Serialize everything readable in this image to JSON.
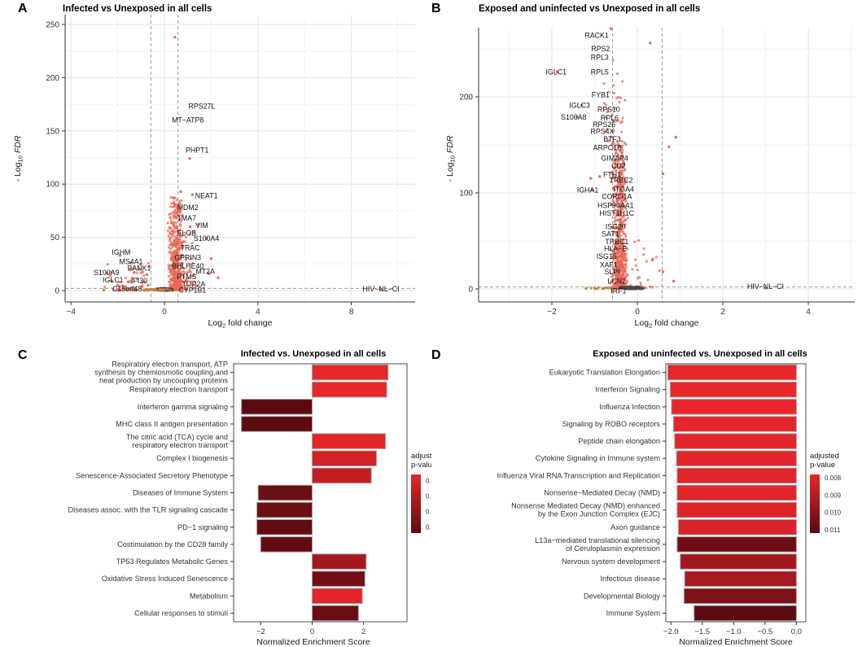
{
  "figure": {
    "panels": [
      {
        "letter": "A"
      },
      {
        "letter": "B"
      },
      {
        "letter": "C"
      },
      {
        "letter": "D"
      }
    ]
  },
  "colors": {
    "point_red": "#e8695a",
    "point_gray": "#474747",
    "point_orange": "#c8803c",
    "grid_major": "#e4e4e4",
    "grid_minor": "#f2f2f2",
    "axis": "#333333",
    "dash": "#9a9a9a",
    "bar_bright": "#e8262a",
    "bar_dark": "#5b0b10",
    "bar_stroke": "#a3a3a3",
    "panel_border": "#4d4d4d",
    "title_color": "#000000",
    "text_color": "#333333"
  },
  "chart_data": [
    {
      "panel": "A",
      "type": "scatter",
      "title": "Infected vs Unexposed in all cells",
      "xlabel": {
        "pre": "Log",
        "sub": "2",
        "post": " fold change",
        "italic": false
      },
      "ylabel": {
        "pre": "- Log",
        "sub": "10",
        "post": " FDR",
        "italic": true
      },
      "xticks": [
        {
          "v": -4,
          "label": "−4"
        },
        {
          "v": 0,
          "label": "0"
        },
        {
          "v": 4,
          "label": "4"
        },
        {
          "v": 8,
          "label": "8"
        }
      ],
      "yticks": [
        {
          "v": 0,
          "label": "0"
        },
        {
          "v": 50,
          "label": "50"
        },
        {
          "v": 100,
          "label": "100"
        },
        {
          "v": 150,
          "label": "150"
        },
        {
          "v": 200,
          "label": "200"
        },
        {
          "v": 250,
          "label": "250"
        }
      ],
      "xminor": [
        -2,
        2,
        6,
        10
      ],
      "yminor": [
        25,
        75,
        125,
        175,
        225
      ],
      "vlines": [
        -0.58,
        0.58
      ],
      "hline": 2,
      "gene_labels": [
        [
          "RPS27L",
          1.6,
          173
        ],
        [
          "MT−ATP8",
          1.0,
          160
        ],
        [
          "PHPT1",
          1.4,
          132
        ],
        [
          "NEAT1",
          1.8,
          89
        ],
        [
          "MDM2",
          1.0,
          78
        ],
        [
          "TMA7",
          0.95,
          68
        ],
        [
          "VIM",
          1.6,
          61
        ],
        [
          "ELOB",
          0.95,
          54
        ],
        [
          "S100A4",
          1.8,
          49
        ],
        [
          "TRAC",
          1.1,
          40
        ],
        [
          "GPRIN3",
          1.0,
          31
        ],
        [
          "BHLHE40",
          1.0,
          23
        ],
        [
          "MT2A",
          1.75,
          18
        ],
        [
          "PTMS",
          0.95,
          13
        ],
        [
          "TOP2A",
          1.25,
          6
        ],
        [
          "CYP1B1",
          1.2,
          0.5
        ],
        [
          "IGHM",
          -1.85,
          36
        ],
        [
          "MS4A1",
          -1.43,
          27
        ],
        [
          "BANK1",
          -1.08,
          21
        ],
        [
          "S100A9",
          -2.48,
          17
        ],
        [
          "IGLC1",
          -2.2,
          10
        ],
        [
          "IFI30",
          -1.08,
          9
        ],
        [
          "C15orf48",
          -1.6,
          1.5
        ],
        [
          "HIV−NL−CI",
          9.27,
          1.5
        ]
      ],
      "clouds": [
        {
          "n": 550,
          "cx": 0.48,
          "hw": 0.34,
          "ymin": 0.5,
          "ymax": 88,
          "pow": 2.3,
          "color": "red",
          "seed": 11
        },
        {
          "n": 60,
          "cx": 1.0,
          "hw": 0.55,
          "ymin": 1,
          "ymax": 58,
          "pow": 2.0,
          "color": "red",
          "seed": 12
        },
        {
          "n": 40,
          "cx": -1.5,
          "hw": 1.05,
          "ymin": 0.5,
          "ymax": 30,
          "pow": 2.2,
          "color": "red",
          "seed": 13
        },
        {
          "n": 170,
          "cx": 0.02,
          "hw": 0.38,
          "ymin": 0,
          "ymax": 2.2,
          "pow": 1.2,
          "color": "gray",
          "seed": 14
        },
        {
          "n": 26,
          "cx": -0.3,
          "hw": 1.1,
          "ymin": 0,
          "ymax": 1.5,
          "pow": 1.0,
          "color": "orange",
          "seed": 15
        }
      ],
      "points": [
        {
          "x": 0.45,
          "y": 238,
          "c": "red"
        },
        {
          "x": 1.08,
          "y": 124,
          "c": "red"
        },
        {
          "x": 0.7,
          "y": 93,
          "c": "red"
        },
        {
          "x": 1.2,
          "y": 90,
          "c": "red"
        },
        {
          "x": 0.4,
          "y": 87,
          "c": "red"
        },
        {
          "x": 1.45,
          "y": 62,
          "c": "red"
        },
        {
          "x": 1.1,
          "y": 60,
          "c": "red"
        },
        {
          "x": 1.8,
          "y": 49,
          "c": "red"
        },
        {
          "x": 2.0,
          "y": 30,
          "c": "red"
        },
        {
          "x": 2.3,
          "y": 12,
          "c": "red"
        },
        {
          "x": 1.9,
          "y": 16,
          "c": "red"
        },
        {
          "x": -1.9,
          "y": 33,
          "c": "red"
        },
        {
          "x": -1.45,
          "y": 26,
          "c": "red"
        },
        {
          "x": -1.1,
          "y": 20,
          "c": "red"
        },
        {
          "x": -2.45,
          "y": 16,
          "c": "red"
        },
        {
          "x": -2.25,
          "y": 9,
          "c": "red"
        },
        {
          "x": -1.55,
          "y": 8,
          "c": "red"
        },
        {
          "x": -1.15,
          "y": 11,
          "c": "red"
        },
        {
          "x": -0.85,
          "y": 8,
          "c": "red"
        },
        {
          "x": -1.3,
          "y": 17,
          "c": "red"
        },
        {
          "x": -0.95,
          "y": 4,
          "c": "red"
        },
        {
          "x": -1.7,
          "y": 3,
          "c": "red"
        },
        {
          "x": -2.0,
          "y": 5,
          "c": "red"
        },
        {
          "x": -0.75,
          "y": 15,
          "c": "red"
        },
        {
          "x": -0.7,
          "y": 5,
          "c": "red"
        },
        {
          "x": -1.6,
          "y": 0.8,
          "c": "orange"
        },
        {
          "x": -1.2,
          "y": 0.6,
          "c": "orange"
        },
        {
          "x": -0.8,
          "y": 0.9,
          "c": "orange"
        },
        {
          "x": 9.27,
          "y": 0.8,
          "c": "orange"
        },
        {
          "x": 0.95,
          "y": 0.7,
          "c": "orange"
        },
        {
          "x": -2.6,
          "y": 0.5,
          "c": "orange"
        }
      ]
    },
    {
      "panel": "B",
      "type": "scatter",
      "title": "Exposed and uninfected vs Unexposed in all cells",
      "xlabel": {
        "pre": "Log",
        "sub": "2",
        "post": " fold change",
        "italic": false
      },
      "ylabel": {
        "pre": "- Log",
        "sub": "10",
        "post": " FDR",
        "italic": true
      },
      "xticks": [
        {
          "v": -2,
          "label": "−2"
        },
        {
          "v": 0,
          "label": "0"
        },
        {
          "v": 2,
          "label": "2"
        },
        {
          "v": 4,
          "label": "4"
        }
      ],
      "yticks": [
        {
          "v": 0,
          "label": "0"
        },
        {
          "v": 100,
          "label": "100"
        },
        {
          "v": 200,
          "label": "200"
        }
      ],
      "xminor": [
        -3,
        -1,
        1,
        3,
        5
      ],
      "yminor": [
        50,
        150,
        250
      ],
      "vlines": [
        -0.58,
        0.58
      ],
      "hline": 2,
      "gene_labels": [
        [
          "RACK1",
          -0.95,
          264
        ],
        [
          "RPS2",
          -0.86,
          250
        ],
        [
          "RPL3",
          -0.88,
          241
        ],
        [
          "RPL5",
          -0.88,
          226
        ],
        [
          "IGLC1",
          -1.9,
          226
        ],
        [
          "FYB1",
          -0.86,
          202
        ],
        [
          "IGLC3",
          -1.35,
          191
        ],
        [
          "RPS10",
          -0.67,
          187
        ],
        [
          "S100A8",
          -1.49,
          179
        ],
        [
          "RPL6",
          -0.65,
          178
        ],
        [
          "RPS26",
          -0.78,
          171
        ],
        [
          "RPS4X",
          -0.82,
          164
        ],
        [
          "BTF3",
          -0.59,
          156
        ],
        [
          "ARPC1B",
          -0.7,
          147
        ],
        [
          "GIMAP4",
          -0.53,
          136
        ],
        [
          "CD2",
          -0.44,
          128
        ],
        [
          "FTH1",
          -0.59,
          119
        ],
        [
          "TRBC2",
          -0.38,
          113
        ],
        [
          "IGHA1",
          -1.16,
          103
        ],
        [
          "ITGA4",
          -0.32,
          104
        ],
        [
          "CORO1A",
          -0.48,
          96
        ],
        [
          "HSP90AA1",
          -0.51,
          87
        ],
        [
          "HIST1H1C",
          -0.48,
          79
        ],
        [
          "ISG20",
          -0.51,
          65
        ],
        [
          "SAT1",
          -0.63,
          57
        ],
        [
          "TRBC1",
          -0.48,
          49
        ],
        [
          "HLA−E",
          -0.51,
          42
        ],
        [
          "ISG15",
          -0.72,
          34
        ],
        [
          "XAF1",
          -0.67,
          25
        ],
        [
          "SLPI",
          -0.59,
          18
        ],
        [
          "LCN2",
          -0.48,
          8
        ],
        [
          "IRF1",
          -0.44,
          -2
        ],
        [
          "HIV−NL−CI",
          3.0,
          2.5
        ]
      ],
      "clouds": [
        {
          "n": 700,
          "cx": -0.42,
          "hw": 0.2,
          "ymin": 0.5,
          "ymax": 152,
          "pow": 2.0,
          "color": "red",
          "seed": 21
        },
        {
          "n": 40,
          "cx": -0.5,
          "hw": 0.35,
          "ymin": 150,
          "ymax": 240,
          "pow": 1.5,
          "color": "red",
          "seed": 22
        },
        {
          "n": 25,
          "cx": 0.1,
          "hw": 0.45,
          "ymin": 1,
          "ymax": 55,
          "pow": 2.5,
          "color": "red",
          "seed": 23
        },
        {
          "n": 140,
          "cx": -0.12,
          "hw": 0.3,
          "ymin": 0,
          "ymax": 2.2,
          "pow": 1.2,
          "color": "gray",
          "seed": 24
        },
        {
          "n": 12,
          "cx": -0.8,
          "hw": 0.35,
          "ymin": 0,
          "ymax": 1.5,
          "pow": 1.0,
          "color": "orange",
          "seed": 25
        }
      ],
      "points": [
        {
          "x": -0.62,
          "y": 271,
          "c": "red"
        },
        {
          "x": 0.3,
          "y": 256,
          "c": "red"
        },
        {
          "x": 0.9,
          "y": 158,
          "c": "red"
        },
        {
          "x": -1.09,
          "y": 115,
          "c": "red"
        },
        {
          "x": -1.88,
          "y": 226,
          "c": "red"
        },
        {
          "x": -1.3,
          "y": 191,
          "c": "red"
        },
        {
          "x": -1.42,
          "y": 179,
          "c": "red"
        },
        {
          "x": -1.05,
          "y": 103,
          "c": "red"
        },
        {
          "x": -0.88,
          "y": 117,
          "c": "red"
        },
        {
          "x": 0.74,
          "y": 148,
          "c": "red"
        },
        {
          "x": 0.6,
          "y": 120,
          "c": "red"
        },
        {
          "x": 0.35,
          "y": 30,
          "c": "red"
        },
        {
          "x": 0.6,
          "y": 18,
          "c": "red"
        },
        {
          "x": 0.85,
          "y": 8,
          "c": "red"
        },
        {
          "x": -0.78,
          "y": 0.6,
          "c": "orange"
        },
        {
          "x": 3.0,
          "y": 0.8,
          "c": "orange"
        },
        {
          "x": -1.2,
          "y": 0.5,
          "c": "orange"
        }
      ]
    },
    {
      "panel": "C",
      "type": "bar",
      "title": "Infected vs. Unexposed in all cells",
      "xlabel": "Normalized Enrichment Score",
      "xticks": [
        {
          "v": -2,
          "label": "−2"
        },
        {
          "v": 0,
          "label": "0"
        },
        {
          "v": 2,
          "label": "2"
        }
      ],
      "legend": {
        "title_lines": [
          "adjusted",
          "p-value"
        ],
        "domain": [
          0.013,
          0.032
        ],
        "ticks": [
          {
            "v": 0.015,
            "label": "0.015"
          },
          {
            "v": 0.02,
            "label": "0.020"
          },
          {
            "v": 0.025,
            "label": "0.025"
          },
          {
            "v": 0.03,
            "label": "0.030"
          }
        ]
      },
      "bars": [
        {
          "lines": [
            "Respiratory electron transport, ATP",
            "synthesis by chemiosmotic coupling,and",
            "heat production by uncoupling proteins"
          ],
          "value": 2.95,
          "padj": 0.013
        },
        {
          "lines": [
            "Respiratory electron transport"
          ],
          "value": 2.9,
          "padj": 0.013
        },
        {
          "lines": [
            "Interferon gamma signaling"
          ],
          "value": -2.75,
          "padj": 0.032
        },
        {
          "lines": [
            "MHC class II antigen presentation"
          ],
          "value": -2.75,
          "padj": 0.032
        },
        {
          "lines": [
            "The citric acid (TCA) cycle and",
            "respiratory electron transport"
          ],
          "value": 2.85,
          "padj": 0.014
        },
        {
          "lines": [
            "Complex I biogenesis"
          ],
          "value": 2.5,
          "padj": 0.016
        },
        {
          "lines": [
            "Senescence-Associated Secretory Phenotype"
          ],
          "value": 2.3,
          "padj": 0.018
        },
        {
          "lines": [
            "Diseases of Immune System"
          ],
          "value": -2.1,
          "padj": 0.03
        },
        {
          "lines": [
            "Diseases assoc. with the TLR signaling cascade"
          ],
          "value": -2.15,
          "padj": 0.03
        },
        {
          "lines": [
            "PD−1 signaling"
          ],
          "value": -2.15,
          "padj": 0.031
        },
        {
          "lines": [
            "Costimulation by the CD28 family"
          ],
          "value": -2.0,
          "padj": 0.031
        },
        {
          "lines": [
            "TP53 Regulates Metabolic Genes"
          ],
          "value": 2.1,
          "padj": 0.022
        },
        {
          "lines": [
            "Oxidative Stress Induced Senescence"
          ],
          "value": 2.05,
          "padj": 0.029
        },
        {
          "lines": [
            "Metabolism"
          ],
          "value": 1.95,
          "padj": 0.014
        },
        {
          "lines": [
            "Cellular responses to stimuli"
          ],
          "value": 1.8,
          "padj": 0.03
        }
      ]
    },
    {
      "panel": "D",
      "type": "bar",
      "title": "Exposed and uninfected vs. Unexposed in all cells",
      "xlabel": "Normalized Enrichment Score",
      "xticks": [
        {
          "v": -2,
          "label": "−2.0"
        },
        {
          "v": -1.5,
          "label": "−1.5"
        },
        {
          "v": -1,
          "label": "−1.0"
        },
        {
          "v": -0.5,
          "label": "−0.5"
        },
        {
          "v": 0,
          "label": "0.0"
        }
      ],
      "legend": {
        "title_lines": [
          "adjusted",
          "p-value"
        ],
        "domain": [
          0.0078,
          0.0112
        ],
        "ticks": [
          {
            "v": 0.008,
            "label": "0.008"
          },
          {
            "v": 0.009,
            "label": "0.009"
          },
          {
            "v": 0.01,
            "label": "0.010"
          },
          {
            "v": 0.011,
            "label": "0.011"
          }
        ]
      },
      "bars": [
        {
          "lines": [
            "Eukaryotic Translation Elongation"
          ],
          "value": -2.05,
          "padj": 0.0078
        },
        {
          "lines": [
            "Interferon Signaling"
          ],
          "value": -2.01,
          "padj": 0.0078
        },
        {
          "lines": [
            "Influenza Infection"
          ],
          "value": -1.99,
          "padj": 0.0078
        },
        {
          "lines": [
            "Signaling by ROBO receptors"
          ],
          "value": -1.96,
          "padj": 0.0079
        },
        {
          "lines": [
            "Peptide chain elongation"
          ],
          "value": -1.94,
          "padj": 0.0079
        },
        {
          "lines": [
            "Cytokine Signaling in Immune system"
          ],
          "value": -1.91,
          "padj": 0.008
        },
        {
          "lines": [
            "Influenza Viral RNA Transcription and Replication"
          ],
          "value": -1.9,
          "padj": 0.008
        },
        {
          "lines": [
            "Nonsense−Mediated Decay (NMD)"
          ],
          "value": -1.9,
          "padj": 0.008
        },
        {
          "lines": [
            "Nonsense Mediated Decay (NMD) enhanced",
            "by the Exon Junction Complex (EJC)"
          ],
          "value": -1.9,
          "padj": 0.0081
        },
        {
          "lines": [
            "Axon guidance"
          ],
          "value": -1.88,
          "padj": 0.0082
        },
        {
          "lines": [
            "L13a−mediated translational silencing",
            "of Ceruloplasmin expression"
          ],
          "value": -1.9,
          "padj": 0.0108
        },
        {
          "lines": [
            "Nervous system development"
          ],
          "value": -1.85,
          "padj": 0.0095
        },
        {
          "lines": [
            "Infectious disease"
          ],
          "value": -1.78,
          "padj": 0.0094
        },
        {
          "lines": [
            "Developmental Biology"
          ],
          "value": -1.79,
          "padj": 0.0103
        },
        {
          "lines": [
            "Immune System"
          ],
          "value": -1.63,
          "padj": 0.0112
        }
      ]
    }
  ]
}
